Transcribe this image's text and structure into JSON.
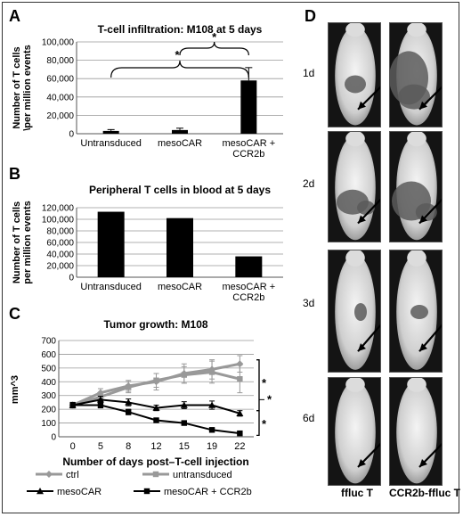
{
  "panels": {
    "A": {
      "letter": "A"
    },
    "B": {
      "letter": "B"
    },
    "C": {
      "letter": "C"
    },
    "D": {
      "letter": "D"
    }
  },
  "imaging": {
    "days": [
      "1d",
      "2d",
      "3d",
      "6d"
    ],
    "columns": [
      "ffluc T",
      "CCR2b-ffluc T"
    ]
  },
  "chart_data": [
    {
      "type": "bar",
      "title": "T-cell infiltration: M108 at 5 days",
      "ylabel": "Number of T cells \\per million events",
      "categories": [
        "Untransduced",
        "mesoCAR",
        "mesoCAR + CCR2b"
      ],
      "values": [
        3000,
        4000,
        58000
      ],
      "errors": [
        1500,
        2000,
        14000
      ],
      "ylim": [
        0,
        100000
      ],
      "yticks": [
        "0",
        "20,000",
        "40,000",
        "60,000",
        "80,000",
        "100,000"
      ],
      "grid": true,
      "annotations": [
        "*",
        "*"
      ]
    },
    {
      "type": "bar",
      "title": "Peripheral T cells in blood at 5 days",
      "ylabel": "Number of T cells per million events",
      "categories": [
        "Untransduced",
        "mesoCAR",
        "mesoCAR + CCR2b"
      ],
      "values": [
        113000,
        102000,
        36000
      ],
      "ylim": [
        0,
        120000
      ],
      "yticks": [
        "0",
        "20,000",
        "40,000",
        "60,000",
        "80,000",
        "100,000",
        "120,000"
      ],
      "grid": true
    },
    {
      "type": "line",
      "title": "Tumor growth: M108",
      "xlabel": "Number of days post–T-cell injection",
      "ylabel": "mm^3",
      "x": [
        0,
        5,
        8,
        12,
        15,
        19,
        22
      ],
      "ylim": [
        0,
        700
      ],
      "yticks": [
        "0",
        "100",
        "200",
        "300",
        "400",
        "500",
        "600",
        "700"
      ],
      "grid": true,
      "legend_position": "bottom",
      "series": [
        {
          "name": "ctrl",
          "values": [
            230,
            320,
            370,
            400,
            460,
            490,
            530
          ],
          "errors": [
            20,
            30,
            40,
            60,
            70,
            70,
            60
          ],
          "color": "#999999",
          "marker": "diamond"
        },
        {
          "name": "untransduced",
          "values": [
            230,
            290,
            360,
            410,
            450,
            470,
            420
          ],
          "errors": [
            20,
            30,
            40,
            50,
            60,
            80,
            100
          ],
          "color": "#999999",
          "marker": "square"
        },
        {
          "name": "mesoCAR",
          "values": [
            230,
            270,
            250,
            210,
            230,
            230,
            170
          ],
          "errors": [
            20,
            25,
            25,
            20,
            25,
            30,
            20
          ],
          "color": "#000000",
          "marker": "triangle"
        },
        {
          "name": "mesoCAR + CCR2b",
          "values": [
            230,
            230,
            180,
            120,
            100,
            50,
            25
          ],
          "errors": [
            15,
            20,
            20,
            15,
            15,
            10,
            8
          ],
          "color": "#000000",
          "marker": "square"
        }
      ],
      "annotations": [
        "*",
        "*",
        "*"
      ]
    }
  ]
}
